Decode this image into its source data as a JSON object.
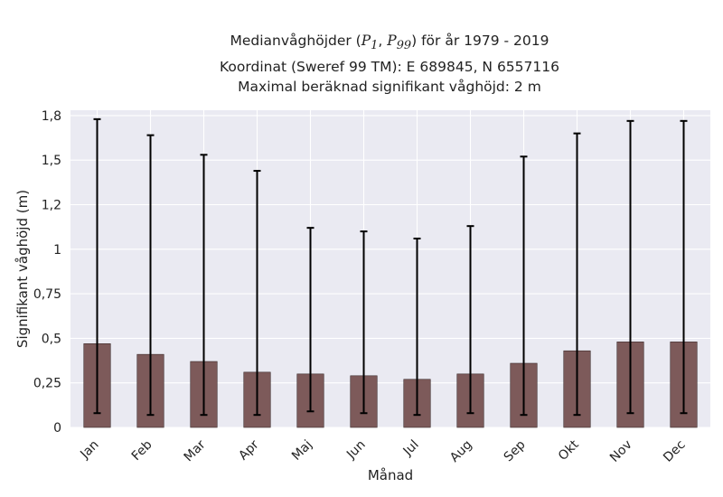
{
  "title": {
    "prefix": "Medianvåghöjder (",
    "p1": "P",
    "p1_sub": "1",
    "sep": ", ",
    "p99": "P",
    "p99_sub": "99",
    "suffix": ") för år 1979 - 2019",
    "line2": "Koordinat (Sweref 99 TM): E 689845, N 6557116",
    "line3": "Maximal beräknad signifikant våghöjd: 2 m"
  },
  "chart_data": {
    "type": "bar",
    "xlabel": "Månad",
    "ylabel": "Signifikant våghöjd (m)",
    "categories": [
      "Jan",
      "Feb",
      "Mar",
      "Apr",
      "Maj",
      "Jun",
      "Jul",
      "Aug",
      "Sep",
      "Okt",
      "Nov",
      "Dec"
    ],
    "values": [
      0.47,
      0.41,
      0.37,
      0.31,
      0.3,
      0.29,
      0.27,
      0.3,
      0.36,
      0.43,
      0.48,
      0.48
    ],
    "p1": [
      0.08,
      0.07,
      0.07,
      0.07,
      0.09,
      0.08,
      0.07,
      0.08,
      0.07,
      0.07,
      0.08,
      0.08
    ],
    "p99": [
      1.73,
      1.64,
      1.53,
      1.44,
      1.12,
      1.1,
      1.06,
      1.13,
      1.52,
      1.65,
      1.72,
      1.72
    ],
    "ylim": [
      0,
      1.78
    ],
    "yticks": [
      0,
      0.25,
      0.5,
      0.75,
      1,
      1.25,
      1.5,
      1.75
    ],
    "ytick_labels": [
      "0",
      "0,25",
      "0,5",
      "0,75",
      "1",
      "1,2",
      "1,5",
      "1,8"
    ],
    "grid": true,
    "bar_color": "#7d5a5a",
    "errorbar_color": "#000000",
    "plot_background": "#eaeaf2",
    "grid_color": "#ffffff"
  }
}
